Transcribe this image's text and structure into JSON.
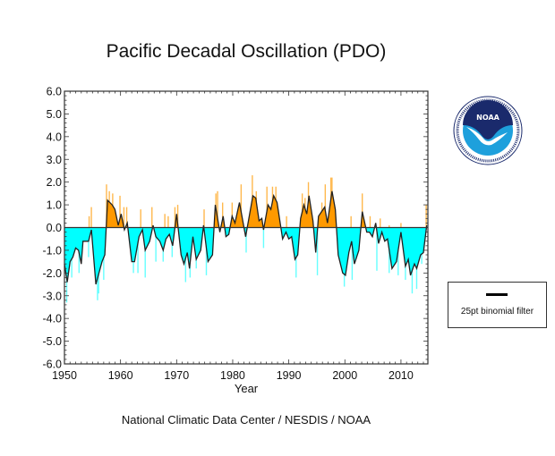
{
  "title": "Pacific Decadal Oscillation (PDO)",
  "footer": "National Climatic Data Center / NESDIS / NOAA",
  "logo": {
    "text": "NOAA",
    "ring_text": "NATIONAL OCEANIC AND ATMOSPHERIC ADMINISTRATION · U.S. DEPARTMENT OF COMMERCE"
  },
  "legend": {
    "label": "25pt binomial filter",
    "placement": "right"
  },
  "colors": {
    "positive": "#ff9900",
    "positive_light": "#ffb84d",
    "negative": "#00ffff",
    "negative_light": "#66ffff",
    "filter_line": "#222222",
    "noaa_dark": "#1a2a6c",
    "noaa_light": "#1ea0dc"
  },
  "chart_data": {
    "type": "area",
    "title": "Pacific Decadal Oscillation (PDO)",
    "xlabel": "Year",
    "ylabel": "",
    "xlim": [
      1950,
      2014.8
    ],
    "ylim": [
      -6.0,
      6.0
    ],
    "x_ticks": [
      "1950",
      "1960",
      "1970",
      "1980",
      "1990",
      "2000",
      "2010"
    ],
    "y_ticks": [
      "6.0",
      "5.0",
      "4.0",
      "3.0",
      "2.0",
      "1.0",
      "0.0",
      "-1.0",
      "-2.0",
      "-3.0",
      "-4.0",
      "-5.0",
      "-6.0"
    ],
    "grid": false,
    "series": [
      {
        "name": "25pt binomial filter",
        "type": "line",
        "points": [
          [
            1950.0,
            -1.6
          ],
          [
            1950.5,
            -2.4
          ],
          [
            1951.0,
            -1.5
          ],
          [
            1951.5,
            -1.3
          ],
          [
            1952.0,
            -0.9
          ],
          [
            1952.5,
            -1.0
          ],
          [
            1953.0,
            -1.6
          ],
          [
            1953.3,
            -0.6
          ],
          [
            1954.3,
            -0.6
          ],
          [
            1954.8,
            -0.1
          ],
          [
            1955.6,
            -2.5
          ],
          [
            1956.7,
            -1.5
          ],
          [
            1957.2,
            -1.2
          ],
          [
            1957.7,
            1.2
          ],
          [
            1958.5,
            1.0
          ],
          [
            1959.0,
            0.8
          ],
          [
            1959.6,
            0.1
          ],
          [
            1960.1,
            0.6
          ],
          [
            1960.7,
            -0.1
          ],
          [
            1961.2,
            0.2
          ],
          [
            1962.0,
            -1.5
          ],
          [
            1962.5,
            -1.5
          ],
          [
            1963.3,
            -0.4
          ],
          [
            1963.9,
            -0.1
          ],
          [
            1964.4,
            -1.0
          ],
          [
            1965.2,
            -0.6
          ],
          [
            1965.8,
            0.1
          ],
          [
            1966.3,
            -0.4
          ],
          [
            1967.0,
            -0.6
          ],
          [
            1967.6,
            -1.0
          ],
          [
            1968.1,
            -0.5
          ],
          [
            1968.7,
            -0.3
          ],
          [
            1969.3,
            -0.8
          ],
          [
            1970.0,
            0.6
          ],
          [
            1970.8,
            -1.2
          ],
          [
            1971.3,
            -1.6
          ],
          [
            1971.9,
            -1.1
          ],
          [
            1972.3,
            -1.8
          ],
          [
            1972.9,
            -0.4
          ],
          [
            1973.5,
            -1.4
          ],
          [
            1974.3,
            -1.0
          ],
          [
            1974.8,
            0.1
          ],
          [
            1975.6,
            -1.5
          ],
          [
            1976.4,
            -1.2
          ],
          [
            1976.9,
            1.0
          ],
          [
            1977.7,
            -0.2
          ],
          [
            1978.3,
            0.5
          ],
          [
            1978.8,
            -0.4
          ],
          [
            1979.3,
            -0.3
          ],
          [
            1979.9,
            0.5
          ],
          [
            1980.4,
            0.2
          ],
          [
            1981.2,
            1.1
          ],
          [
            1982.3,
            -0.4
          ],
          [
            1983.6,
            1.4
          ],
          [
            1984.1,
            1.3
          ],
          [
            1984.7,
            0.3
          ],
          [
            1985.2,
            0.4
          ],
          [
            1985.5,
            -0.1
          ],
          [
            1986.3,
            1.0
          ],
          [
            1986.8,
            0.8
          ],
          [
            1987.3,
            1.4
          ],
          [
            1987.9,
            1.1
          ],
          [
            1988.9,
            -0.5
          ],
          [
            1989.5,
            -0.2
          ],
          [
            1990.0,
            -0.5
          ],
          [
            1990.5,
            -0.4
          ],
          [
            1991.1,
            -1.4
          ],
          [
            1991.6,
            -1.2
          ],
          [
            1992.1,
            0.4
          ],
          [
            1992.7,
            1.0
          ],
          [
            1993.2,
            0.6
          ],
          [
            1993.6,
            1.4
          ],
          [
            1994.3,
            0.3
          ],
          [
            1994.8,
            -1.1
          ],
          [
            1995.3,
            0.5
          ],
          [
            1996.4,
            0.9
          ],
          [
            1996.9,
            0.2
          ],
          [
            1997.7,
            1.6
          ],
          [
            1998.3,
            0.8
          ],
          [
            1998.8,
            -1.2
          ],
          [
            1999.6,
            -2.0
          ],
          [
            2000.1,
            -2.1
          ],
          [
            2000.7,
            -1.1
          ],
          [
            2001.2,
            -0.6
          ],
          [
            2001.7,
            -1.6
          ],
          [
            2002.5,
            -1.0
          ],
          [
            2003.1,
            0.7
          ],
          [
            2003.9,
            -0.2
          ],
          [
            2004.4,
            -0.2
          ],
          [
            2004.9,
            -0.4
          ],
          [
            2005.5,
            0.2
          ],
          [
            2006.0,
            -0.7
          ],
          [
            2006.6,
            -0.2
          ],
          [
            2007.1,
            -0.6
          ],
          [
            2007.6,
            -0.5
          ],
          [
            2008.4,
            -1.8
          ],
          [
            2009.2,
            -1.5
          ],
          [
            2010.0,
            -0.2
          ],
          [
            2010.8,
            -1.7
          ],
          [
            2011.3,
            -1.4
          ],
          [
            2011.7,
            -2.1
          ],
          [
            2012.4,
            -1.6
          ],
          [
            2012.8,
            -1.8
          ],
          [
            2013.5,
            -1.2
          ],
          [
            2014.0,
            -1.1
          ],
          [
            2014.6,
            0.1
          ]
        ]
      },
      {
        "type": "bar",
        "description": "monthly values (visible extremes)",
        "points": [
          [
            1954.4,
            0.5
          ],
          [
            1954.8,
            0.9
          ],
          [
            1957.5,
            1.9
          ],
          [
            1958.0,
            1.6
          ],
          [
            1958.6,
            1.5
          ],
          [
            1959.9,
            1.4
          ],
          [
            1960.6,
            0.9
          ],
          [
            1961.1,
            0.9
          ],
          [
            1963.6,
            0.8
          ],
          [
            1965.6,
            0.9
          ],
          [
            1967.9,
            0.6
          ],
          [
            1968.5,
            0.5
          ],
          [
            1969.7,
            0.9
          ],
          [
            1970.2,
            1.0
          ],
          [
            1974.9,
            0.8
          ],
          [
            1977.0,
            1.5
          ],
          [
            1977.3,
            1.6
          ],
          [
            1978.2,
            1.1
          ],
          [
            1979.9,
            1.1
          ],
          [
            1981.5,
            1.9
          ],
          [
            1983.5,
            2.3
          ],
          [
            1984.2,
            1.6
          ],
          [
            1986.1,
            1.8
          ],
          [
            1987.1,
            1.8
          ],
          [
            1987.7,
            1.8
          ],
          [
            1989.6,
            0.5
          ],
          [
            1992.4,
            1.5
          ],
          [
            1992.9,
            1.3
          ],
          [
            1993.5,
            2.0
          ],
          [
            1995.9,
            1.1
          ],
          [
            1996.5,
            1.9
          ],
          [
            1997.5,
            2.2
          ],
          [
            1997.7,
            2.2
          ],
          [
            2001.1,
            0.5
          ],
          [
            2003.1,
            1.5
          ],
          [
            2004.5,
            0.5
          ],
          [
            2006.3,
            0.4
          ],
          [
            2007.9,
            0.1
          ],
          [
            2010.0,
            0.2
          ],
          [
            2014.5,
            1.0
          ],
          [
            1950.4,
            -3.3
          ],
          [
            1951.3,
            -2.2
          ],
          [
            1952.6,
            -2.0
          ],
          [
            1954.3,
            -1.3
          ],
          [
            1955.9,
            -3.2
          ],
          [
            1956.1,
            -2.9
          ],
          [
            1957.0,
            -2.3
          ],
          [
            1962.3,
            -2.0
          ],
          [
            1963.1,
            -2.0
          ],
          [
            1964.4,
            -2.2
          ],
          [
            1966.3,
            -1.5
          ],
          [
            1967.6,
            -1.5
          ],
          [
            1969.2,
            -1.3
          ],
          [
            1971.6,
            -2.4
          ],
          [
            1972.4,
            -2.2
          ],
          [
            1973.5,
            -1.8
          ],
          [
            1975.3,
            -2.1
          ],
          [
            1982.4,
            -1.1
          ],
          [
            1985.5,
            -0.9
          ],
          [
            1991.3,
            -2.2
          ],
          [
            1995.1,
            -2.1
          ],
          [
            1999.9,
            -2.6
          ],
          [
            2001.3,
            -2.3
          ],
          [
            2005.7,
            -1.9
          ],
          [
            2007.9,
            -2.0
          ],
          [
            2009.5,
            -2.1
          ],
          [
            2010.8,
            -2.3
          ],
          [
            2012.0,
            -2.9
          ],
          [
            2012.8,
            -2.7
          ],
          [
            2013.7,
            -1.6
          ]
        ]
      }
    ]
  }
}
